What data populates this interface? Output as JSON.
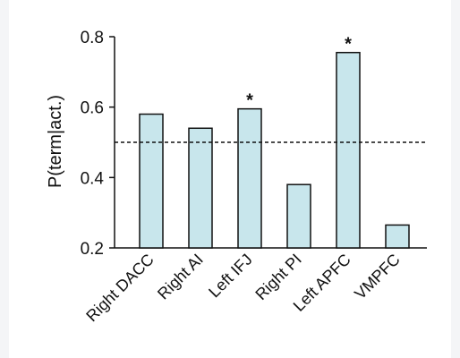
{
  "chart_data": {
    "type": "bar",
    "categories": [
      "Right DACC",
      "Right AI",
      "Left IFJ",
      "Right PI",
      "Left APFC",
      "VMPFC"
    ],
    "values": [
      0.58,
      0.54,
      0.595,
      0.38,
      0.755,
      0.265
    ],
    "annotations": [
      "",
      "",
      "*",
      "",
      "*",
      ""
    ],
    "reference_line": 0.5,
    "ylabel": "P(term|act.)",
    "ylim": [
      0.2,
      0.8
    ],
    "yticks": [
      0.2,
      0.4,
      0.6,
      0.8
    ],
    "yticklabels": [
      "0.2",
      "0.4",
      "0.6",
      "0.8"
    ],
    "grid": false,
    "bar_color": "#c8e6ec",
    "edge_color": "#111111"
  }
}
